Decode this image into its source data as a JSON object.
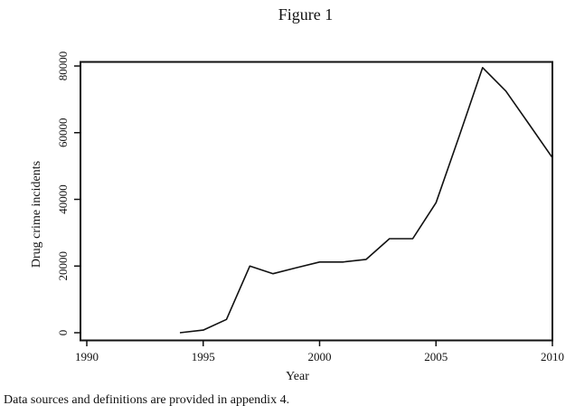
{
  "chart_data": {
    "type": "line",
    "title": "Figure 1",
    "xlabel": "Year",
    "ylabel": "Drug crime incidents",
    "xlim": [
      1990,
      2010
    ],
    "ylim": [
      0,
      80000
    ],
    "x_ticks": [
      "1990",
      "1995",
      "2000",
      "2005",
      "2010"
    ],
    "y_ticks": [
      "0",
      "20000",
      "40000",
      "60000",
      "80000"
    ],
    "grid": false,
    "legend": "none",
    "line_color": "#111111",
    "x": [
      1994,
      1995,
      1996,
      1997,
      1998,
      1999,
      2000,
      2001,
      2002,
      2003,
      2004,
      2005,
      2006,
      2007,
      2008,
      2009,
      2010
    ],
    "y": [
      0,
      800,
      4000,
      20000,
      17700,
      19500,
      21200,
      21200,
      22000,
      28200,
      28200,
      39000,
      59000,
      79500,
      72500,
      62500,
      52500
    ]
  },
  "footnote": "Data sources and definitions are provided in appendix 4."
}
